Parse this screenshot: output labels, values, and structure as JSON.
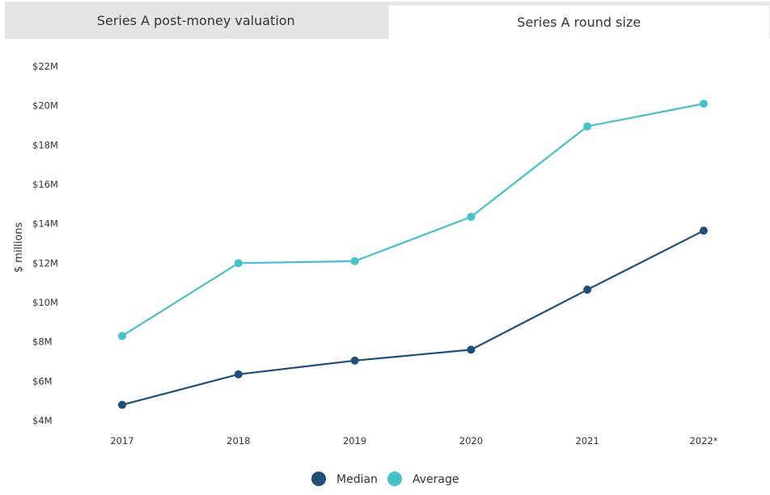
{
  "tabs": [
    {
      "label": "Series A post-money valuation",
      "active": false
    },
    {
      "label": "Series A round size",
      "active": true
    }
  ],
  "chart_data": {
    "type": "line",
    "title": "Series A round size",
    "ylabel": "$ millions",
    "xlabel": "",
    "categories": [
      "2017",
      "2018",
      "2019",
      "2020",
      "2021",
      "2022*"
    ],
    "ylim": [
      4,
      22
    ],
    "yticks": [
      4,
      6,
      8,
      10,
      12,
      14,
      16,
      18,
      20,
      22
    ],
    "ytick_labels": [
      "$4M",
      "$6M",
      "$8M",
      "$10M",
      "$12M",
      "$14M",
      "$16M",
      "$18M",
      "$20M",
      "$22M"
    ],
    "grid": false,
    "legend_position": "bottom-center",
    "series": [
      {
        "name": "Median",
        "color": "#1f4e79",
        "values": [
          4.8,
          6.35,
          7.05,
          7.6,
          10.65,
          13.65
        ]
      },
      {
        "name": "Average",
        "color": "#45c1c9",
        "values": [
          8.3,
          12.0,
          12.1,
          14.35,
          18.95,
          20.1
        ]
      }
    ]
  }
}
